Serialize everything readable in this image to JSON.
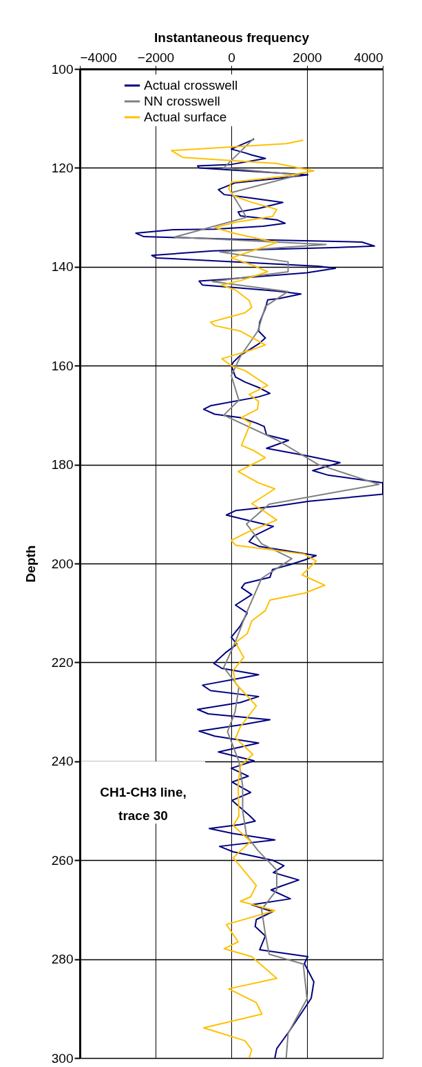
{
  "chart_data": {
    "type": "line",
    "orientation": "horizontal",
    "xlabel": "Instantaneous frequency",
    "ylabel": "Depth",
    "xlim": [
      -4000,
      4000
    ],
    "xticks": [
      -4000,
      -2000,
      0,
      2000,
      4000
    ],
    "ylim": [
      300,
      100
    ],
    "yticks": [
      100,
      120,
      140,
      160,
      180,
      200,
      220,
      240,
      260,
      280,
      300
    ],
    "grid": true,
    "legend": "top",
    "annotations": [
      "CH1-CH3 line,\ntrace 30"
    ],
    "series": [
      {
        "name": "Actual crosswell",
        "color": "#000080",
        "x": [
          114.2,
          116.2,
          117,
          117.4,
          118.1,
          119.3,
          119.6,
          120,
          121.4,
          122.1,
          123,
          124.4,
          125.4,
          125.8,
          127,
          128.2,
          128.9,
          129.7,
          130.5,
          131.2,
          131.8,
          132.4,
          132.5,
          133.2,
          133.9,
          134.4,
          135,
          135.8,
          136.1,
          136.8,
          137.7,
          138.2,
          139,
          139.9,
          140.3,
          141.2,
          142.6,
          142.9,
          143.7,
          144.2,
          144.9,
          145.5,
          146.4,
          146.7,
          148.4,
          151.2,
          153,
          154.4,
          155.6,
          157.9,
          159.3,
          160,
          162.3,
          163.3,
          164.4,
          165.6,
          166.3,
          168.1,
          168.8,
          169.8,
          170.5,
          171.6,
          172.3,
          174,
          175.1,
          176.7,
          178.2,
          179.6,
          181.2,
          182.1,
          183.7,
          186,
          187.4,
          188.4,
          189.3,
          190.2,
          190.9,
          192.5,
          194.4,
          195.6,
          196.5,
          198.4,
          199.3,
          200.2,
          201.2,
          202.8,
          204,
          204.9,
          206.3,
          208.4,
          210,
          212.6,
          214.9,
          216.3,
          217.9,
          220.2,
          221.2,
          222.5,
          223,
          224.6,
          225.7,
          226.9,
          228.1,
          229.5,
          230.4,
          231.6,
          232.5,
          233.9,
          234.9,
          236.3,
          238.1,
          239.9,
          241.4,
          243,
          244.2,
          246.3,
          247.9,
          250.9,
          252.1,
          252.8,
          253.6,
          254.6,
          255.9,
          257.2,
          258.3,
          260,
          261.1,
          262.5,
          264,
          265.2,
          266,
          267.8,
          269,
          270.4,
          272,
          273.4,
          275.3,
          278.1,
          279.5,
          280.9,
          284.6,
          287.9,
          290.7,
          294.8,
          298.1,
          300
        ],
        "values": [
          600,
          0,
          380,
          540,
          900,
          0,
          -890,
          -850,
          2020,
          1270,
          110,
          -340,
          -190,
          240,
          1360,
          720,
          180,
          240,
          1200,
          1420,
          840,
          -440,
          -1530,
          -2520,
          -2310,
          0,
          3450,
          3780,
          2840,
          -490,
          -2100,
          -1980,
          110,
          2300,
          2750,
          1990,
          -310,
          -850,
          -760,
          110,
          1200,
          1840,
          1270,
          960,
          900,
          750,
          720,
          900,
          720,
          240,
          50,
          0,
          110,
          360,
          720,
          1020,
          720,
          -550,
          -730,
          -440,
          240,
          660,
          870,
          930,
          1510,
          930,
          1990,
          2870,
          2150,
          2540,
          4000,
          4000,
          2050,
          1200,
          110,
          -130,
          240,
          1110,
          600,
          470,
          720,
          2240,
          1930,
          1560,
          1090,
          1020,
          360,
          270,
          540,
          110,
          420,
          240,
          0,
          150,
          -130,
          -460,
          -250,
          720,
          360,
          -760,
          -550,
          720,
          240,
          -890,
          -610,
          1020,
          360,
          -850,
          -440,
          720,
          -340,
          600,
          0,
          450,
          20,
          510,
          20,
          470,
          630,
          240,
          -580,
          50,
          1150,
          -310,
          50,
          1090,
          1390,
          1110,
          1780,
          1330,
          1050,
          1560,
          540,
          1090,
          660,
          630,
          900,
          750,
          2020,
          1930,
          2180,
          2110,
          1870,
          1510,
          1200,
          1150
        ]
      },
      {
        "name": "NN crosswell",
        "color": "#808080",
        "x": [
          114,
          120,
          121.4,
          125,
          130,
          134,
          135.5,
          137,
          139,
          141,
          143,
          145,
          148,
          153,
          158,
          162,
          167,
          170,
          175,
          180,
          184,
          188,
          192,
          196,
          199,
          203,
          210,
          216,
          221,
          225,
          230,
          234,
          240,
          245,
          250,
          255,
          258,
          262,
          266,
          270,
          275,
          279,
          281,
          288,
          295,
          300
        ],
        "values": [
          600,
          -200,
          1800,
          0,
          400,
          -1500,
          2500,
          -300,
          1500,
          1500,
          -500,
          1500,
          900,
          700,
          250,
          0,
          200,
          -200,
          1200,
          2300,
          3900,
          1000,
          400,
          800,
          1600,
          800,
          400,
          100,
          -200,
          200,
          100,
          -100,
          200,
          300,
          300,
          400,
          700,
          1200,
          1200,
          800,
          900,
          1000,
          1900,
          2000,
          1500,
          1450
        ]
      },
      {
        "name": "Actual surface",
        "color": "#ffc000",
        "x": [
          114.4,
          115.1,
          116.5,
          117.9,
          119.1,
          120.6,
          121.7,
          122.9,
          124.2,
          125.6,
          126.8,
          128.4,
          129.8,
          131,
          132.1,
          133.3,
          135.1,
          136.5,
          138.2,
          139.6,
          141,
          142.8,
          143.7,
          144.7,
          146.8,
          148.2,
          149.3,
          151.2,
          151.9,
          153,
          155.8,
          156.8,
          158.6,
          160,
          161,
          162.8,
          164,
          165.8,
          167.2,
          168.8,
          170.5,
          171.6,
          176.1,
          177.2,
          178.6,
          181.4,
          183.7,
          184.9,
          187.9,
          189.3,
          191.2,
          193.7,
          195.3,
          196.3,
          198.1,
          199.5,
          202.3,
          204.4,
          206,
          207.4,
          209.5,
          211.6,
          214.2,
          216,
          219,
          221.6,
          224.2,
          228.8,
          233,
          235.3,
          238.6,
          240.9,
          244.6,
          251.1,
          253,
          256.2,
          259.5,
          265.1,
          267.4,
          268.3,
          270.2,
          273,
          276.5,
          277.9,
          279.5,
          283.9,
          286,
          288.8,
          291.1,
          293.9,
          296.5,
          298.3,
          300
        ],
        "values": [
          1900,
          1450,
          -1580,
          -1280,
          1200,
          2180,
          1390,
          0,
          -70,
          50,
          470,
          1200,
          1090,
          110,
          -440,
          110,
          1200,
          660,
          0,
          540,
          960,
          240,
          -250,
          110,
          470,
          540,
          360,
          -550,
          -440,
          240,
          900,
          540,
          -250,
          0,
          360,
          720,
          960,
          470,
          720,
          690,
          270,
          510,
          270,
          600,
          900,
          180,
          720,
          1150,
          540,
          840,
          1200,
          420,
          0,
          110,
          1930,
          2240,
          1870,
          2470,
          1930,
          1020,
          900,
          540,
          420,
          110,
          330,
          50,
          110,
          660,
          240,
          110,
          570,
          240,
          180,
          200,
          50,
          510,
          50,
          660,
          510,
          240,
          1150,
          -130,
          180,
          -190,
          540,
          1200,
          -70,
          660,
          810,
          -730,
          360,
          540,
          470
        ]
      }
    ]
  }
}
